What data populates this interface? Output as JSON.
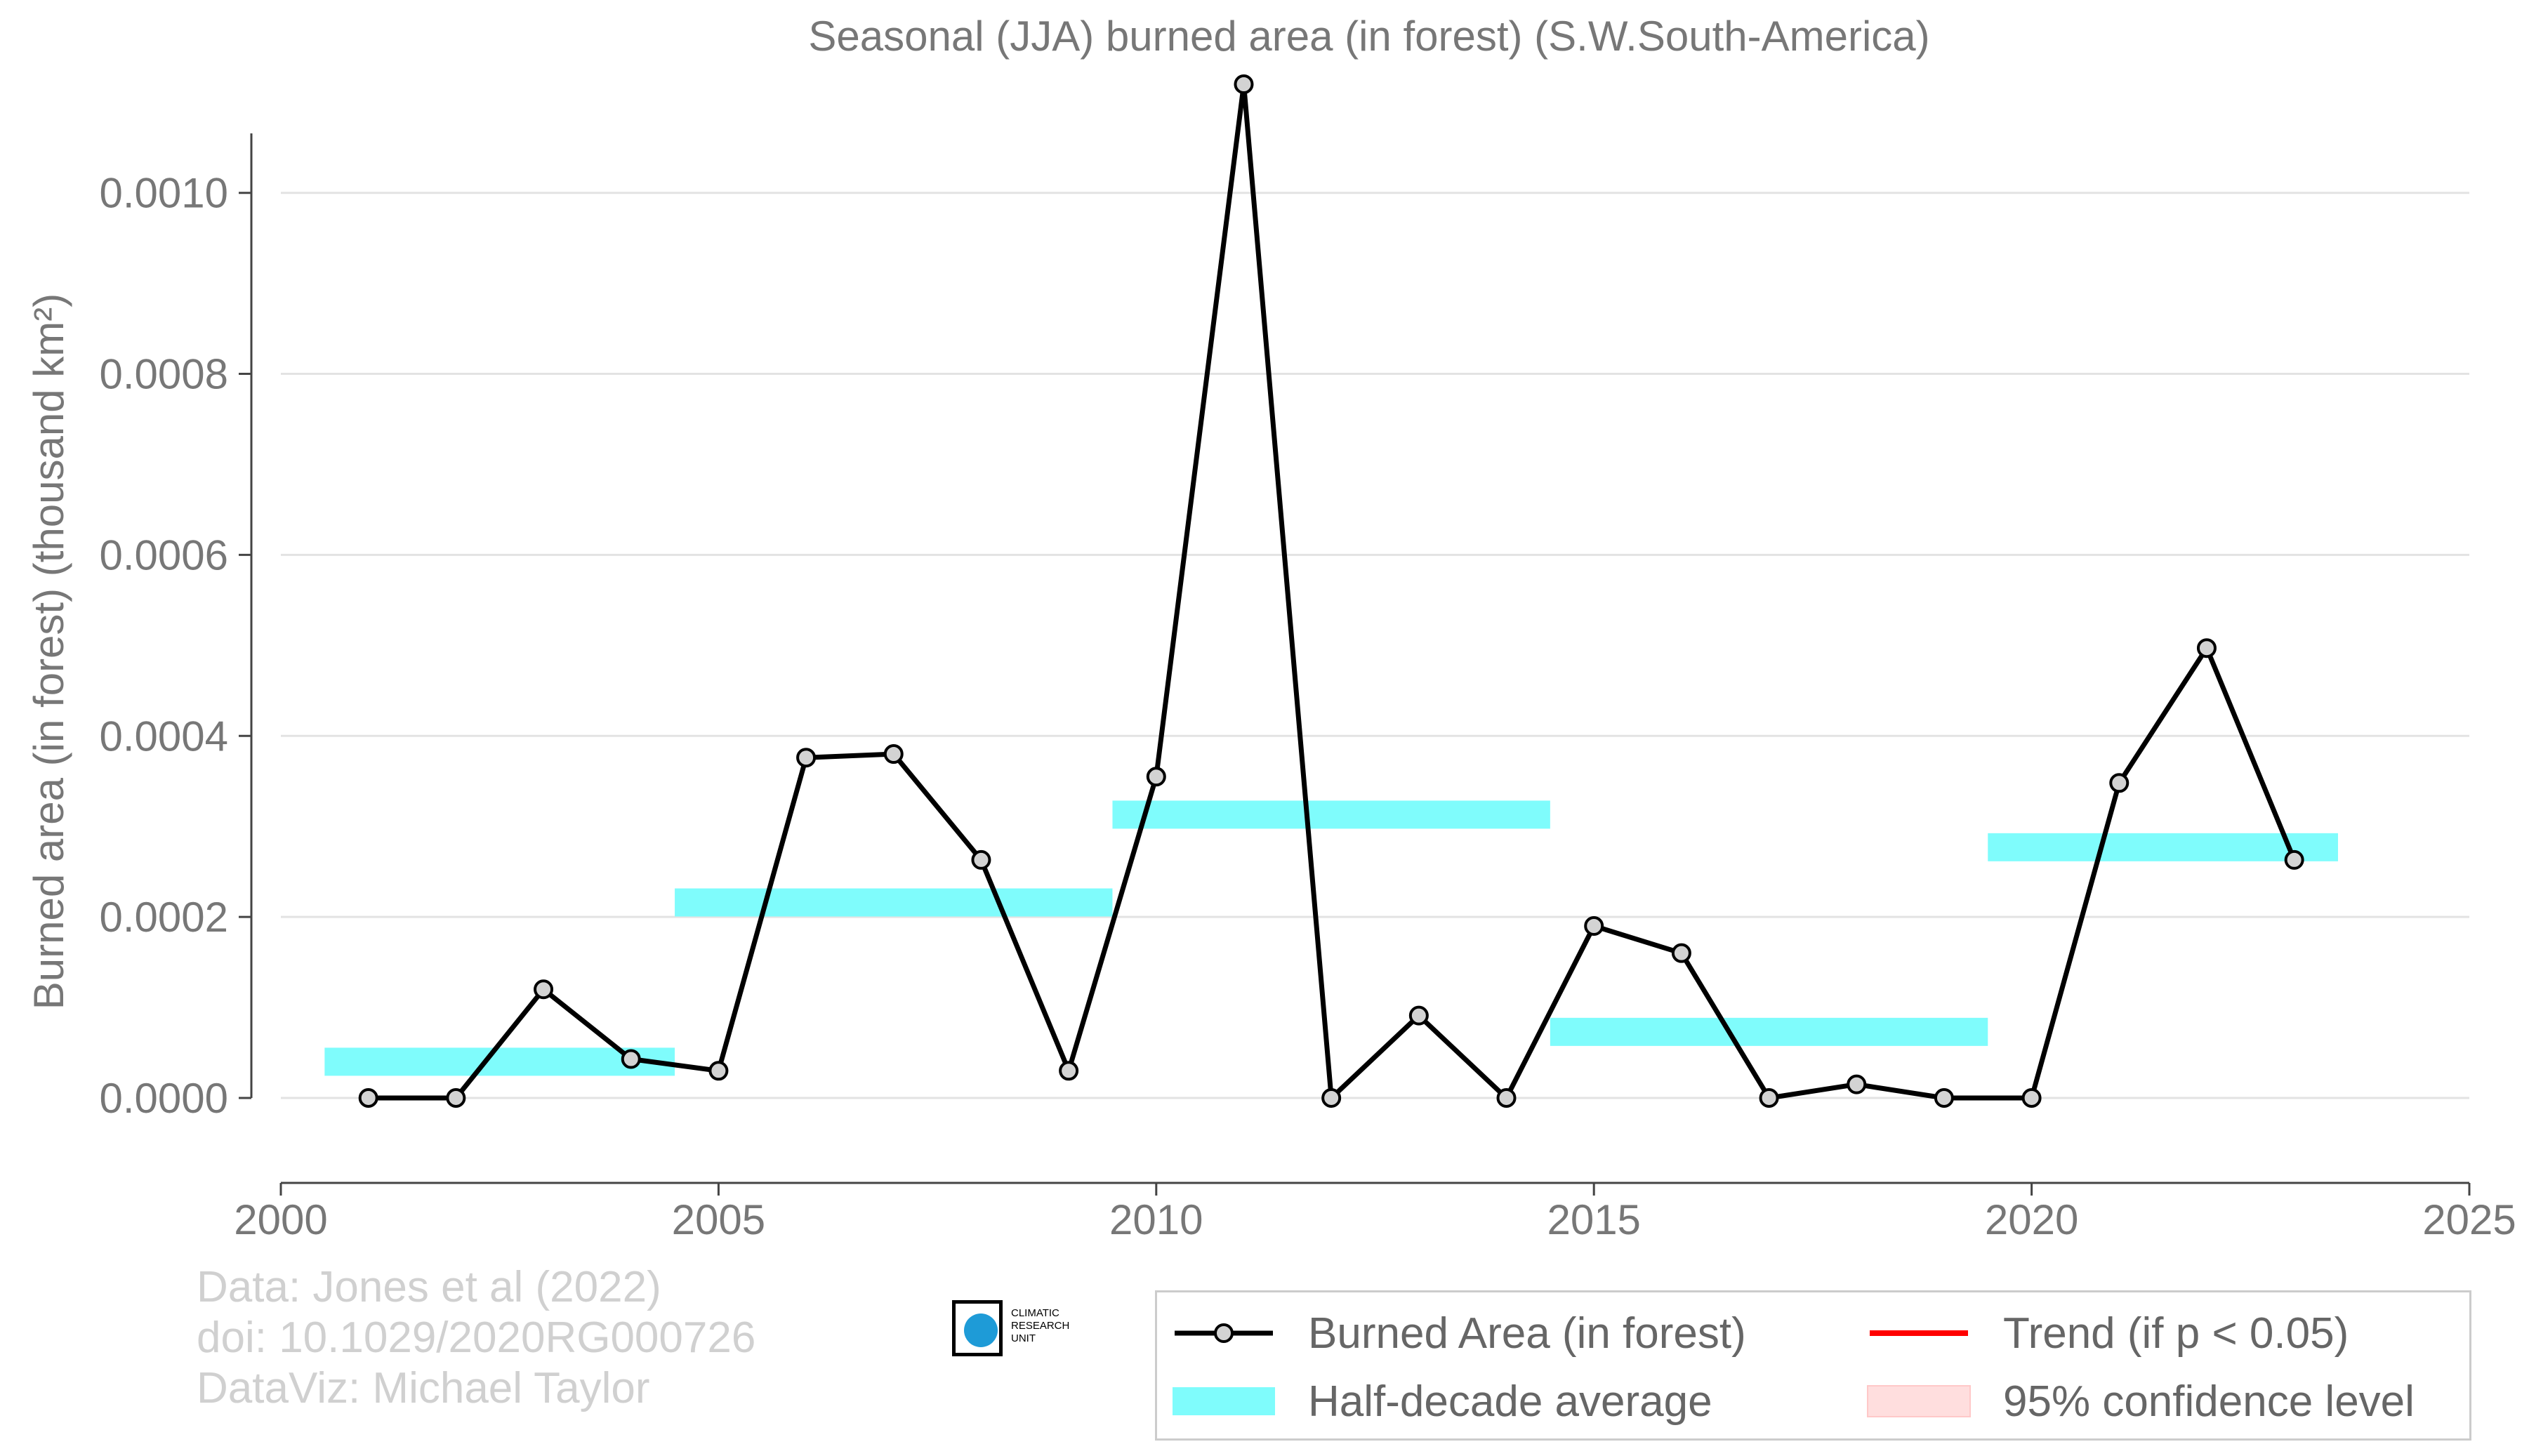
{
  "chart_data": {
    "type": "line",
    "title": "Seasonal (JJA) burned area (in forest) (S.W.South-America)",
    "ylabel": "Burned area (in forest) (thousand km²)",
    "xlabel": "",
    "xlim": [
      2000,
      2025
    ],
    "ylim": [
      -9e-05,
      0.00112
    ],
    "x_ticks": [
      2000,
      2005,
      2010,
      2015,
      2020,
      2025
    ],
    "x_tick_labels": [
      "2000",
      "2005",
      "2010",
      "2015",
      "2020",
      "2025"
    ],
    "y_ticks": [
      0,
      0.0002,
      0.0004,
      0.0006,
      0.0008,
      0.001
    ],
    "y_tick_labels": [
      "0.0000",
      "0.0002",
      "0.0004",
      "0.0006",
      "0.0008",
      "0.0010"
    ],
    "grid": "horizontal",
    "legend_position": "bottom-right",
    "series": [
      {
        "name": "Burned Area (in forest)",
        "color": "#000000",
        "marker_fill": "#d3d3d3",
        "x": [
          2001,
          2002,
          2003,
          2004,
          2005,
          2006,
          2007,
          2008,
          2009,
          2010,
          2011,
          2012,
          2013,
          2014,
          2015,
          2016,
          2017,
          2018,
          2019,
          2020,
          2021,
          2022,
          2023
        ],
        "values": [
          0.0,
          0.0,
          0.00012,
          4.3e-05,
          3e-05,
          0.000376,
          0.00038,
          0.000263,
          3e-05,
          0.000355,
          0.00112,
          0.0,
          9.1e-05,
          0.0,
          0.00019,
          0.00016,
          0.0,
          1.5e-05,
          0.0,
          0.0,
          0.000348,
          0.000497,
          0.000263
        ]
      }
    ],
    "half_decade_averages": {
      "name": "Half-decade average",
      "color": "#7ffcfc",
      "segments": [
        {
          "x_start": 2000.5,
          "x_end": 2004.5,
          "value": 4e-05
        },
        {
          "x_start": 2004.5,
          "x_end": 2009.5,
          "value": 0.000216
        },
        {
          "x_start": 2009.5,
          "x_end": 2014.5,
          "value": 0.000313
        },
        {
          "x_start": 2014.5,
          "x_end": 2019.5,
          "value": 7.3e-05
        },
        {
          "x_start": 2019.5,
          "x_end": 2023.5,
          "value": 0.000277
        }
      ]
    },
    "legend_entries": [
      {
        "label": "Burned Area (in forest)",
        "kind": "line-marker",
        "color": "#000000"
      },
      {
        "label": "Half-decade average",
        "kind": "band",
        "color": "#7ffcfc"
      },
      {
        "label": "Trend (if p < 0.05)",
        "kind": "line",
        "color": "#ff0000"
      },
      {
        "label": "95% confidence level",
        "kind": "shade",
        "color": "#ffdede"
      }
    ]
  },
  "credits": {
    "line1": "Data: Jones et al (2022)",
    "line2": "doi: 10.1029/2020RG000726",
    "line3": "DataViz: Michael Taylor"
  },
  "logo": {
    "line1": "CLIMATIC",
    "line2": "RESEARCH",
    "line3": "UNIT"
  }
}
